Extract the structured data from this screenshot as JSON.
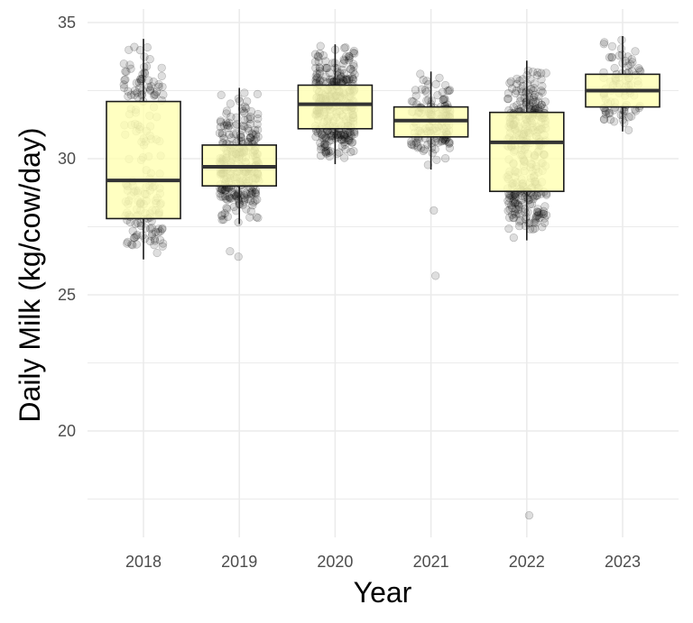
{
  "chart_data": {
    "type": "box",
    "title": "",
    "xlabel": "Year",
    "ylabel": "Daily Milk (kg/cow/day)",
    "ylim": [
      16.2,
      35.5
    ],
    "y_ticks": [
      20,
      25,
      30,
      35
    ],
    "grid": true,
    "legend": "none",
    "colors": {
      "box_fill": "#ffffb3",
      "box_stroke": "#1a1a1a",
      "median": "#333333",
      "point": "#000000",
      "grid": "#ebebeb",
      "background": "#ffffff"
    },
    "categories": [
      "2018",
      "2019",
      "2020",
      "2021",
      "2022",
      "2023"
    ],
    "boxes": [
      {
        "category": "2018",
        "whisker_low": 26.3,
        "q1": 27.8,
        "median": 29.2,
        "q3": 32.1,
        "whisker_high": 34.4,
        "outliers": [],
        "n": 180
      },
      {
        "category": "2019",
        "whisker_low": 27.6,
        "q1": 29.0,
        "median": 29.7,
        "q3": 30.5,
        "whisker_high": 32.6,
        "outliers": [
          26.4,
          26.6
        ],
        "n": 300
      },
      {
        "category": "2020",
        "whisker_low": 29.8,
        "q1": 31.1,
        "median": 32.0,
        "q3": 32.7,
        "whisker_high": 34.2,
        "outliers": [],
        "n": 320
      },
      {
        "category": "2021",
        "whisker_low": 29.6,
        "q1": 30.8,
        "median": 31.4,
        "q3": 31.9,
        "whisker_high": 33.2,
        "outliers": [
          28.1,
          25.7
        ],
        "n": 150
      },
      {
        "category": "2022",
        "whisker_low": 27.0,
        "q1": 28.8,
        "median": 30.6,
        "q3": 31.7,
        "whisker_high": 33.6,
        "outliers": [
          16.9
        ],
        "n": 350
      },
      {
        "category": "2023",
        "whisker_low": 31.0,
        "q1": 31.9,
        "median": 32.5,
        "q3": 33.1,
        "whisker_high": 34.5,
        "outliers": [],
        "n": 90
      }
    ],
    "jitter_points": true
  }
}
